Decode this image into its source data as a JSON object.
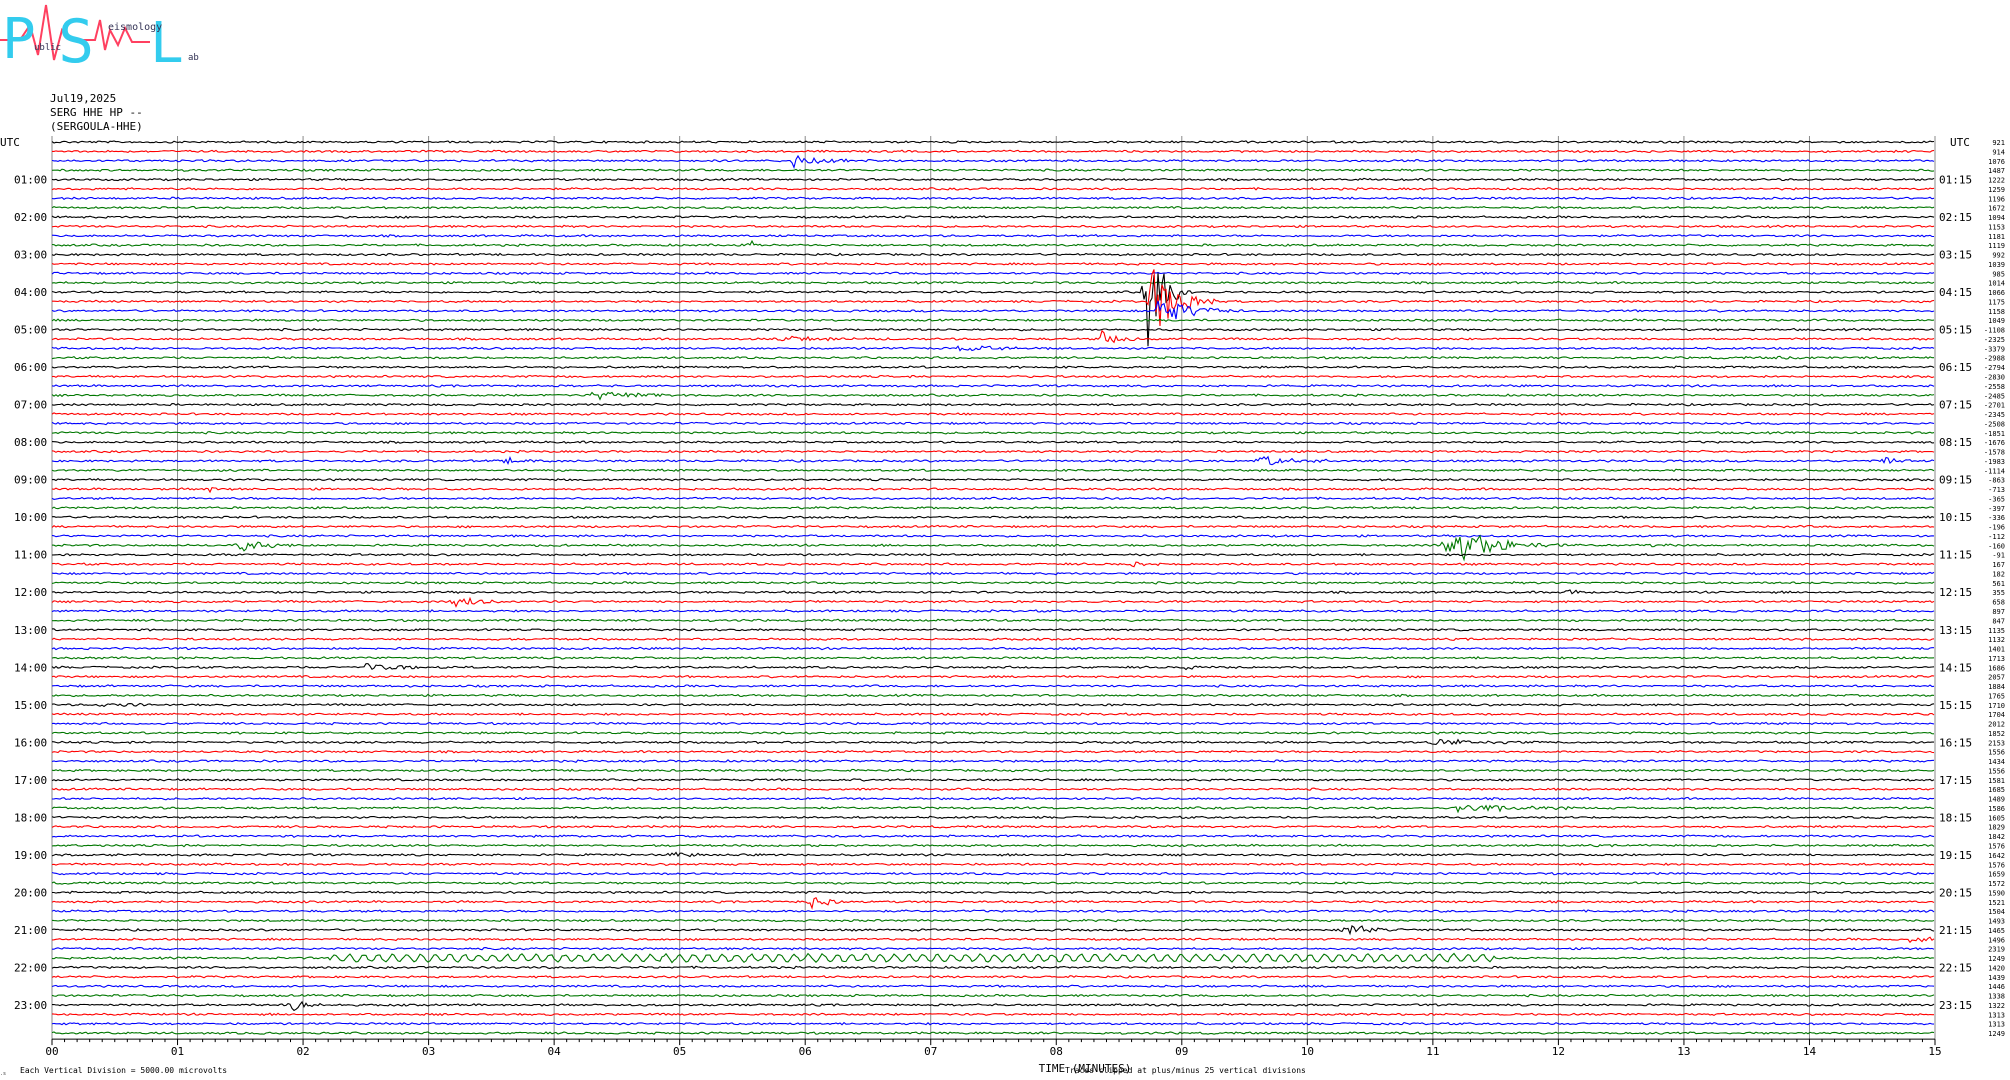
{
  "logo": {
    "letters": [
      "P",
      "S",
      "L"
    ],
    "small_text": [
      "ublic",
      "eismology",
      "ab"
    ]
  },
  "header": {
    "date": "Jul19,2025",
    "station": "SERG HHE HP --",
    "station_full": "(SERGOULA-HHE)"
  },
  "colors": {
    "trace_cycle": [
      "#000000",
      "#ff0000",
      "#0000ff",
      "#007700"
    ],
    "grid": "#777777"
  },
  "chart_data": {
    "type": "line",
    "title": "",
    "xlabel": "TIME (MINUTES)",
    "x_ticks": [
      "00",
      "01",
      "02",
      "03",
      "04",
      "05",
      "06",
      "07",
      "08",
      "09",
      "10",
      "11",
      "12",
      "13",
      "14",
      "15"
    ],
    "xlim": [
      0,
      15
    ],
    "left_time_header": "UTC",
    "right_time_header": "UTC",
    "left_hour_labels": [
      "01:00",
      "02:00",
      "03:00",
      "04:00",
      "05:00",
      "06:00",
      "07:00",
      "08:00",
      "09:00",
      "10:00",
      "11:00",
      "12:00",
      "13:00",
      "14:00",
      "15:00",
      "16:00",
      "17:00",
      "18:00",
      "19:00",
      "20:00",
      "21:00",
      "22:00",
      "23:00"
    ],
    "right_hour_labels": [
      "01:15",
      "02:15",
      "03:15",
      "04:15",
      "05:15",
      "06:15",
      "07:15",
      "08:15",
      "09:15",
      "10:15",
      "11:15",
      "12:15",
      "13:15",
      "14:15",
      "15:15",
      "16:15",
      "17:15",
      "18:15",
      "19:15",
      "20:15",
      "21:15",
      "22:15",
      "23:15"
    ],
    "trace_count": 96,
    "minutes_per_trace": 15,
    "trace_colors_cycle": [
      "black",
      "red",
      "blue",
      "green"
    ],
    "trace_offsets": [
      "921",
      "914",
      "1076",
      "1487",
      "1222",
      "1259",
      "1196",
      "1672",
      "1094",
      "1153",
      "1181",
      "1119",
      "992",
      "1039",
      "985",
      "1014",
      "1066",
      "1175",
      "1158",
      "1049",
      "-1108",
      "-2325",
      "-3379",
      "-2988",
      "-2794",
      "-2830",
      "-2558",
      "-2485",
      "-2701",
      "-2345",
      "-2508",
      "-1851",
      "-1676",
      "-1578",
      "-1983",
      "-1114",
      "-863",
      "-713",
      "-365",
      "-397",
      "-336",
      "-196",
      "-112",
      "-160",
      "-91",
      "167",
      "182",
      "561",
      "355",
      "658",
      "897",
      "847",
      "1135",
      "1132",
      "1401",
      "1713",
      "1686",
      "2057",
      "1884",
      "1765",
      "1710",
      "1704",
      "2012",
      "1852",
      "2153",
      "1556",
      "1434",
      "1556",
      "1581",
      "1685",
      "1489",
      "1586",
      "1605",
      "1829",
      "1842",
      "1576",
      "1642",
      "1576",
      "1659",
      "1572",
      "1590",
      "1521",
      "1504",
      "1493",
      "1465",
      "1496",
      "2319",
      "1249",
      "1420",
      "1439",
      "1446",
      "1338",
      "1322",
      "1313",
      "1313",
      "1249"
    ],
    "events": [
      {
        "trace": 2,
        "minute": 5.9,
        "amp": 7,
        "dur": 0.4
      },
      {
        "trace": 11,
        "minute": 5.55,
        "amp": 6,
        "dur": 0.1
      },
      {
        "trace": 16,
        "minute": 8.7,
        "amp": 70,
        "dur": 0.2
      },
      {
        "trace": 17,
        "minute": 8.75,
        "amp": 40,
        "dur": 0.3
      },
      {
        "trace": 18,
        "minute": 8.8,
        "amp": 15,
        "dur": 0.4
      },
      {
        "trace": 21,
        "minute": 8.35,
        "amp": 9,
        "dur": 0.2
      },
      {
        "trace": 21,
        "minute": 5.8,
        "amp": 3,
        "dur": 0.5
      },
      {
        "trace": 22,
        "minute": 7.2,
        "amp": 3,
        "dur": 0.5
      },
      {
        "trace": 23,
        "minute": 13.7,
        "amp": 2,
        "dur": 0.4
      },
      {
        "trace": 27,
        "minute": 4.3,
        "amp": 5,
        "dur": 0.6
      },
      {
        "trace": 34,
        "minute": 3.6,
        "amp": 3,
        "dur": 0.4
      },
      {
        "trace": 34,
        "minute": 9.6,
        "amp": 6,
        "dur": 0.4
      },
      {
        "trace": 34,
        "minute": 14.6,
        "amp": 4,
        "dur": 0.2
      },
      {
        "trace": 37,
        "minute": 1.25,
        "amp": 5,
        "dur": 0.1
      },
      {
        "trace": 43,
        "minute": 1.45,
        "amp": 9,
        "dur": 0.3
      },
      {
        "trace": 43,
        "minute": 11.1,
        "amp": 24,
        "dur": 0.5
      },
      {
        "trace": 43,
        "minute": 12.7,
        "amp": 4,
        "dur": 0.2
      },
      {
        "trace": 45,
        "minute": 8.6,
        "amp": 3,
        "dur": 0.2
      },
      {
        "trace": 49,
        "minute": 3.2,
        "amp": 8,
        "dur": 0.3
      },
      {
        "trace": 48,
        "minute": 12.05,
        "amp": 3,
        "dur": 0.2
      },
      {
        "trace": 56,
        "minute": 2.5,
        "amp": 5,
        "dur": 0.4
      },
      {
        "trace": 56,
        "minute": 9.0,
        "amp": 3,
        "dur": 0.2
      },
      {
        "trace": 60,
        "minute": 0.4,
        "amp": 3,
        "dur": 0.3
      },
      {
        "trace": 64,
        "minute": 11.0,
        "amp": 3,
        "dur": 0.6
      },
      {
        "trace": 71,
        "minute": 11.2,
        "amp": 6,
        "dur": 0.6
      },
      {
        "trace": 76,
        "minute": 4.9,
        "amp": 3,
        "dur": 0.3
      },
      {
        "trace": 81,
        "minute": 6.05,
        "amp": 8,
        "dur": 0.2
      },
      {
        "trace": 84,
        "minute": 10.3,
        "amp": 8,
        "dur": 0.3
      },
      {
        "trace": 85,
        "minute": 14.8,
        "amp": 4,
        "dur": 0.3
      },
      {
        "trace": 92,
        "minute": 1.9,
        "amp": 8,
        "dur": 0.2
      }
    ],
    "long_wave_trace": 87,
    "clipped_at_divisions": 25,
    "grid": true
  },
  "footer": {
    "left_note": "Each Vertical Division = 5000.00 microvolts",
    "center_label": "TIME (MINUTES)",
    "clip_note": "Traces clipped at plus/minus 25 vertical divisions"
  }
}
